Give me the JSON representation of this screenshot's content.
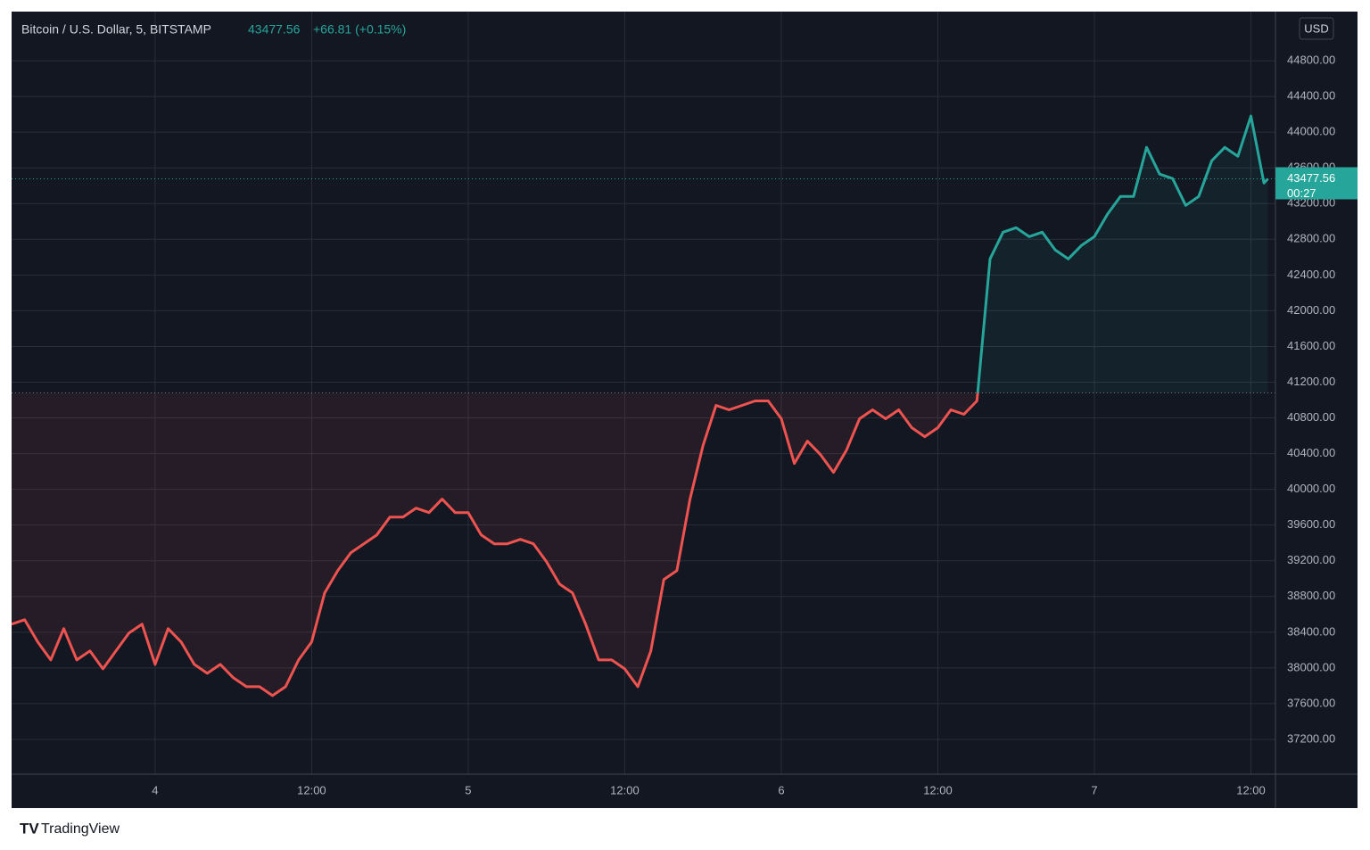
{
  "chart_data": {
    "type": "line",
    "title": "Bitcoin / U.S. Dollar, 5, BITSTAMP",
    "price": 43477.56,
    "price_label": "43477.56",
    "change": "+66.81 (+0.15%)",
    "countdown": "00:27",
    "currency": "USD",
    "brand": "TradingView",
    "baseline": 41080,
    "up_color": "#26a69a",
    "down_color": "#ef5350",
    "x": [
      -11,
      -10,
      -9,
      -8,
      -7,
      -6,
      -5,
      -4,
      -3,
      -2,
      -1,
      0,
      1,
      2,
      3,
      4,
      5,
      6,
      7,
      8,
      9,
      10,
      11,
      12,
      13,
      14,
      15,
      16,
      17,
      18,
      19,
      20,
      21,
      22,
      23,
      24,
      25,
      26,
      27,
      28,
      29,
      30,
      31,
      32,
      33,
      34,
      35,
      36,
      37,
      38,
      39,
      40,
      41,
      42,
      43,
      44,
      45,
      46,
      47,
      48,
      49,
      50,
      51,
      52,
      53,
      54,
      55,
      56,
      57,
      58,
      59,
      60,
      61,
      62,
      63,
      64,
      65,
      66,
      67,
      68,
      69,
      70,
      71,
      72,
      73,
      74,
      75,
      76,
      77,
      78,
      79,
      80,
      81,
      82,
      83,
      84,
      85,
      85.3
    ],
    "values": [
      38490,
      38540,
      38290,
      38090,
      38440,
      38090,
      38190,
      37990,
      38190,
      38390,
      38490,
      38040,
      38440,
      38290,
      38040,
      37940,
      38040,
      37890,
      37790,
      37790,
      37690,
      37790,
      38090,
      38290,
      38840,
      39090,
      39290,
      39390,
      39490,
      39690,
      39690,
      39790,
      39740,
      39890,
      39740,
      39740,
      39490,
      39390,
      39390,
      39440,
      39390,
      39190,
      38940,
      38840,
      38490,
      38090,
      38090,
      37990,
      37790,
      38190,
      38990,
      39090,
      39890,
      40490,
      40940,
      40890,
      40940,
      40990,
      40990,
      40790,
      40290,
      40540,
      40390,
      40190,
      40440,
      40790,
      40890,
      40790,
      40890,
      40690,
      40590,
      40690,
      40890,
      40840,
      40990,
      42580,
      42880,
      42930,
      42830,
      42880,
      42680,
      42580,
      42730,
      42830,
      43080,
      43280,
      43280,
      43830,
      43530,
      43480,
      43180,
      43280,
      43680,
      43830,
      43730,
      44180,
      43430,
      43477.56
    ],
    "xlim": [
      -11,
      85.88
    ],
    "xticks": [
      {
        "value": 0,
        "label": "4"
      },
      {
        "value": 12,
        "label": "12:00"
      },
      {
        "value": 24,
        "label": "5"
      },
      {
        "value": 36,
        "label": "12:00"
      },
      {
        "value": 48,
        "label": "6"
      },
      {
        "value": 60,
        "label": "12:00"
      },
      {
        "value": 72,
        "label": "7"
      },
      {
        "value": 84,
        "label": "12:00"
      }
    ],
    "ylim": [
      36810,
      45350
    ],
    "yticks": [
      {
        "value": 37200,
        "label": "37200.00"
      },
      {
        "value": 37600,
        "label": "37600.00"
      },
      {
        "value": 38000,
        "label": "38000.00"
      },
      {
        "value": 38400,
        "label": "38400.00"
      },
      {
        "value": 38800,
        "label": "38800.00"
      },
      {
        "value": 39200,
        "label": "39200.00"
      },
      {
        "value": 39600,
        "label": "39600.00"
      },
      {
        "value": 40000,
        "label": "40000.00"
      },
      {
        "value": 40400,
        "label": "40400.00"
      },
      {
        "value": 40800,
        "label": "40800.00"
      },
      {
        "value": 41200,
        "label": "41200.00"
      },
      {
        "value": 41600,
        "label": "41600.00"
      },
      {
        "value": 42000,
        "label": "42000.00"
      },
      {
        "value": 42400,
        "label": "42400.00"
      },
      {
        "value": 42800,
        "label": "42800.00"
      },
      {
        "value": 43200,
        "label": "43200.00"
      },
      {
        "value": 43600,
        "label": "43600.00"
      },
      {
        "value": 44000,
        "label": "44000.00"
      },
      {
        "value": 44400,
        "label": "44400.00"
      },
      {
        "value": 44800,
        "label": "44800.00"
      }
    ],
    "grid": true
  }
}
